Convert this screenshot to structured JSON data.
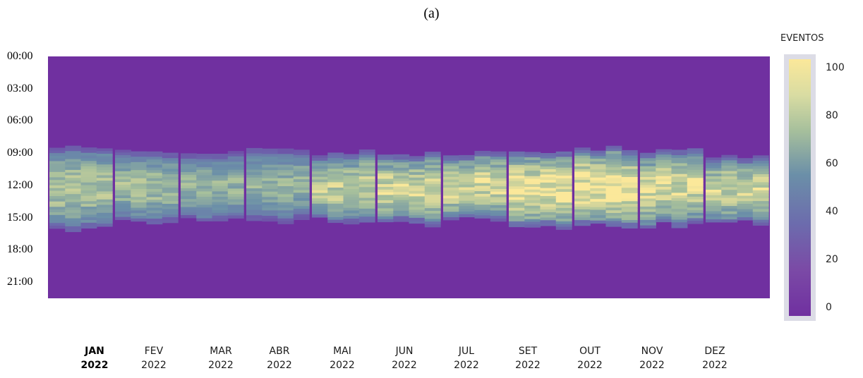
{
  "panel_label": "(a)",
  "chart_data": {
    "type": "heatmap",
    "title": "",
    "xlabel": "",
    "ylabel": "",
    "y_ticks": [
      "00:00",
      "03:00",
      "06:00",
      "09:00",
      "12:00",
      "15:00",
      "18:00",
      "21:00"
    ],
    "x_ticks": [
      {
        "month": "JAN",
        "year": "2022",
        "bold": true
      },
      {
        "month": "FEV",
        "year": "2022"
      },
      {
        "month": "MAR",
        "year": "2022"
      },
      {
        "month": "ABR",
        "year": "2022"
      },
      {
        "month": "MAI",
        "year": "2022"
      },
      {
        "month": "JUN",
        "year": "2022"
      },
      {
        "month": "JUL",
        "year": "2022"
      },
      {
        "month": "SET",
        "year": "2022"
      },
      {
        "month": "OUT",
        "year": "2022"
      },
      {
        "month": "NOV",
        "year": "2022"
      },
      {
        "month": "DEZ",
        "year": "2022"
      }
    ],
    "colorbar": {
      "label": "EVENTOS",
      "ticks": [
        "0",
        "20",
        "40",
        "60",
        "80",
        "100"
      ],
      "range": [
        0,
        100
      ],
      "colors": [
        "#7030a0",
        "#6c6cad",
        "#6b8fa8",
        "#a6bf9c",
        "#fbe89a"
      ]
    },
    "series": [
      {
        "month": "JAN",
        "start_hour": 8.5,
        "end_hour": 15.8,
        "peak": 80
      },
      {
        "month": "FEV",
        "start_hour": 8.9,
        "end_hour": 15.3,
        "peak": 75
      },
      {
        "month": "MAR",
        "start_hour": 8.8,
        "end_hour": 15.2,
        "peak": 70
      },
      {
        "month": "ABR",
        "start_hour": 8.6,
        "end_hour": 15.2,
        "peak": 70
      },
      {
        "month": "MAI",
        "start_hour": 8.9,
        "end_hour": 15.2,
        "peak": 85
      },
      {
        "month": "JUN",
        "start_hour": 9.0,
        "end_hour": 15.4,
        "peak": 90
      },
      {
        "month": "JUL",
        "start_hour": 9.0,
        "end_hour": 15.2,
        "peak": 90
      },
      {
        "month": "SET",
        "start_hour": 8.7,
        "end_hour": 15.6,
        "peak": 100
      },
      {
        "month": "OUT",
        "start_hour": 8.6,
        "end_hour": 15.7,
        "peak": 100
      },
      {
        "month": "NOV",
        "start_hour": 8.8,
        "end_hour": 15.6,
        "peak": 92
      },
      {
        "month": "DEZ",
        "start_hour": 9.2,
        "end_hour": 15.5,
        "peak": 88
      }
    ]
  }
}
